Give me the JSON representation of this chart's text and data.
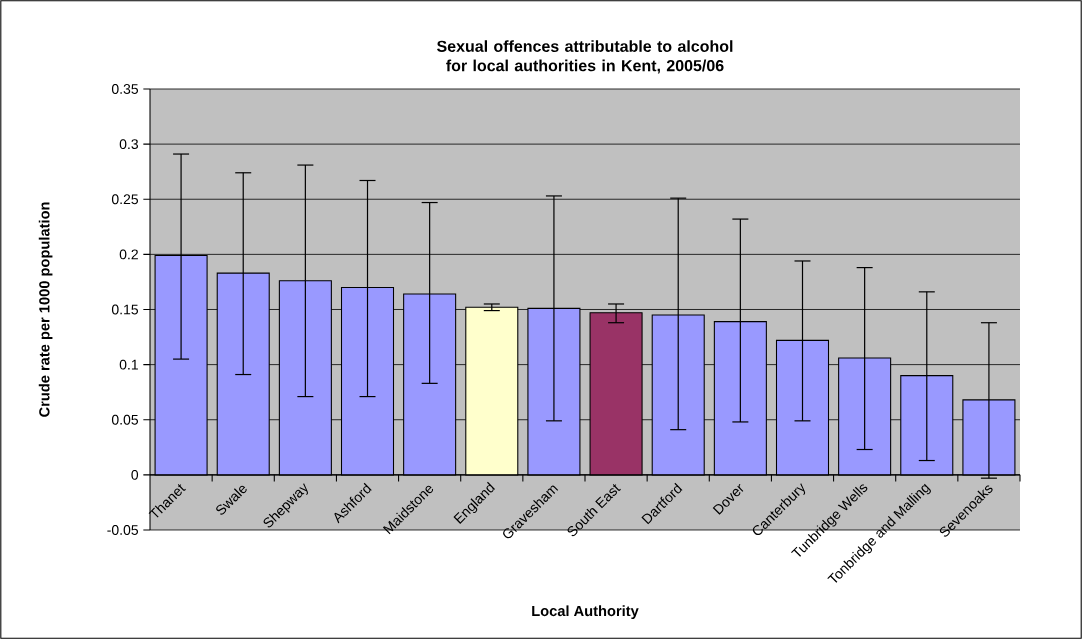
{
  "chart_data": {
    "type": "bar",
    "title": "Sexual offences attributable to alcohol for local authorities in Kent, 2005/06",
    "xlabel": "Local Authority",
    "ylabel": "Crude rate per 1000 population",
    "categories": [
      "Thanet",
      "Swale",
      "Shepway",
      "Ashford",
      "Maidstone",
      "England",
      "Gravesham",
      "South East",
      "Dartford",
      "Dover",
      "Canterbury",
      "Tunbridge Wells",
      "Tonbridge and Malling",
      "Sevenoaks"
    ],
    "values": [
      0.199,
      0.183,
      0.176,
      0.17,
      0.164,
      0.152,
      0.151,
      0.147,
      0.145,
      0.139,
      0.122,
      0.106,
      0.09,
      0.068
    ],
    "colors": [
      "#9999ff",
      "#9999ff",
      "#9999ff",
      "#9999ff",
      "#9999ff",
      "#ffffcc",
      "#9999ff",
      "#993366",
      "#9999ff",
      "#9999ff",
      "#9999ff",
      "#9999ff",
      "#9999ff",
      "#9999ff"
    ],
    "errors": [
      [
        0.105,
        0.291
      ],
      [
        0.091,
        0.274
      ],
      [
        0.071,
        0.281
      ],
      [
        0.071,
        0.267
      ],
      [
        0.083,
        0.247
      ],
      [
        0.149,
        0.155
      ],
      [
        0.049,
        0.253
      ],
      [
        0.138,
        0.155
      ],
      [
        0.041,
        0.251
      ],
      [
        0.048,
        0.232
      ],
      [
        0.049,
        0.194
      ],
      [
        0.023,
        0.188
      ],
      [
        0.013,
        0.166
      ],
      [
        -0.003,
        0.138
      ]
    ],
    "ylim": [
      -0.05,
      0.35
    ],
    "yticks": [
      -0.05,
      0,
      0.05,
      0.1,
      0.15,
      0.2,
      0.25,
      0.3,
      0.35
    ],
    "grid": "y"
  }
}
